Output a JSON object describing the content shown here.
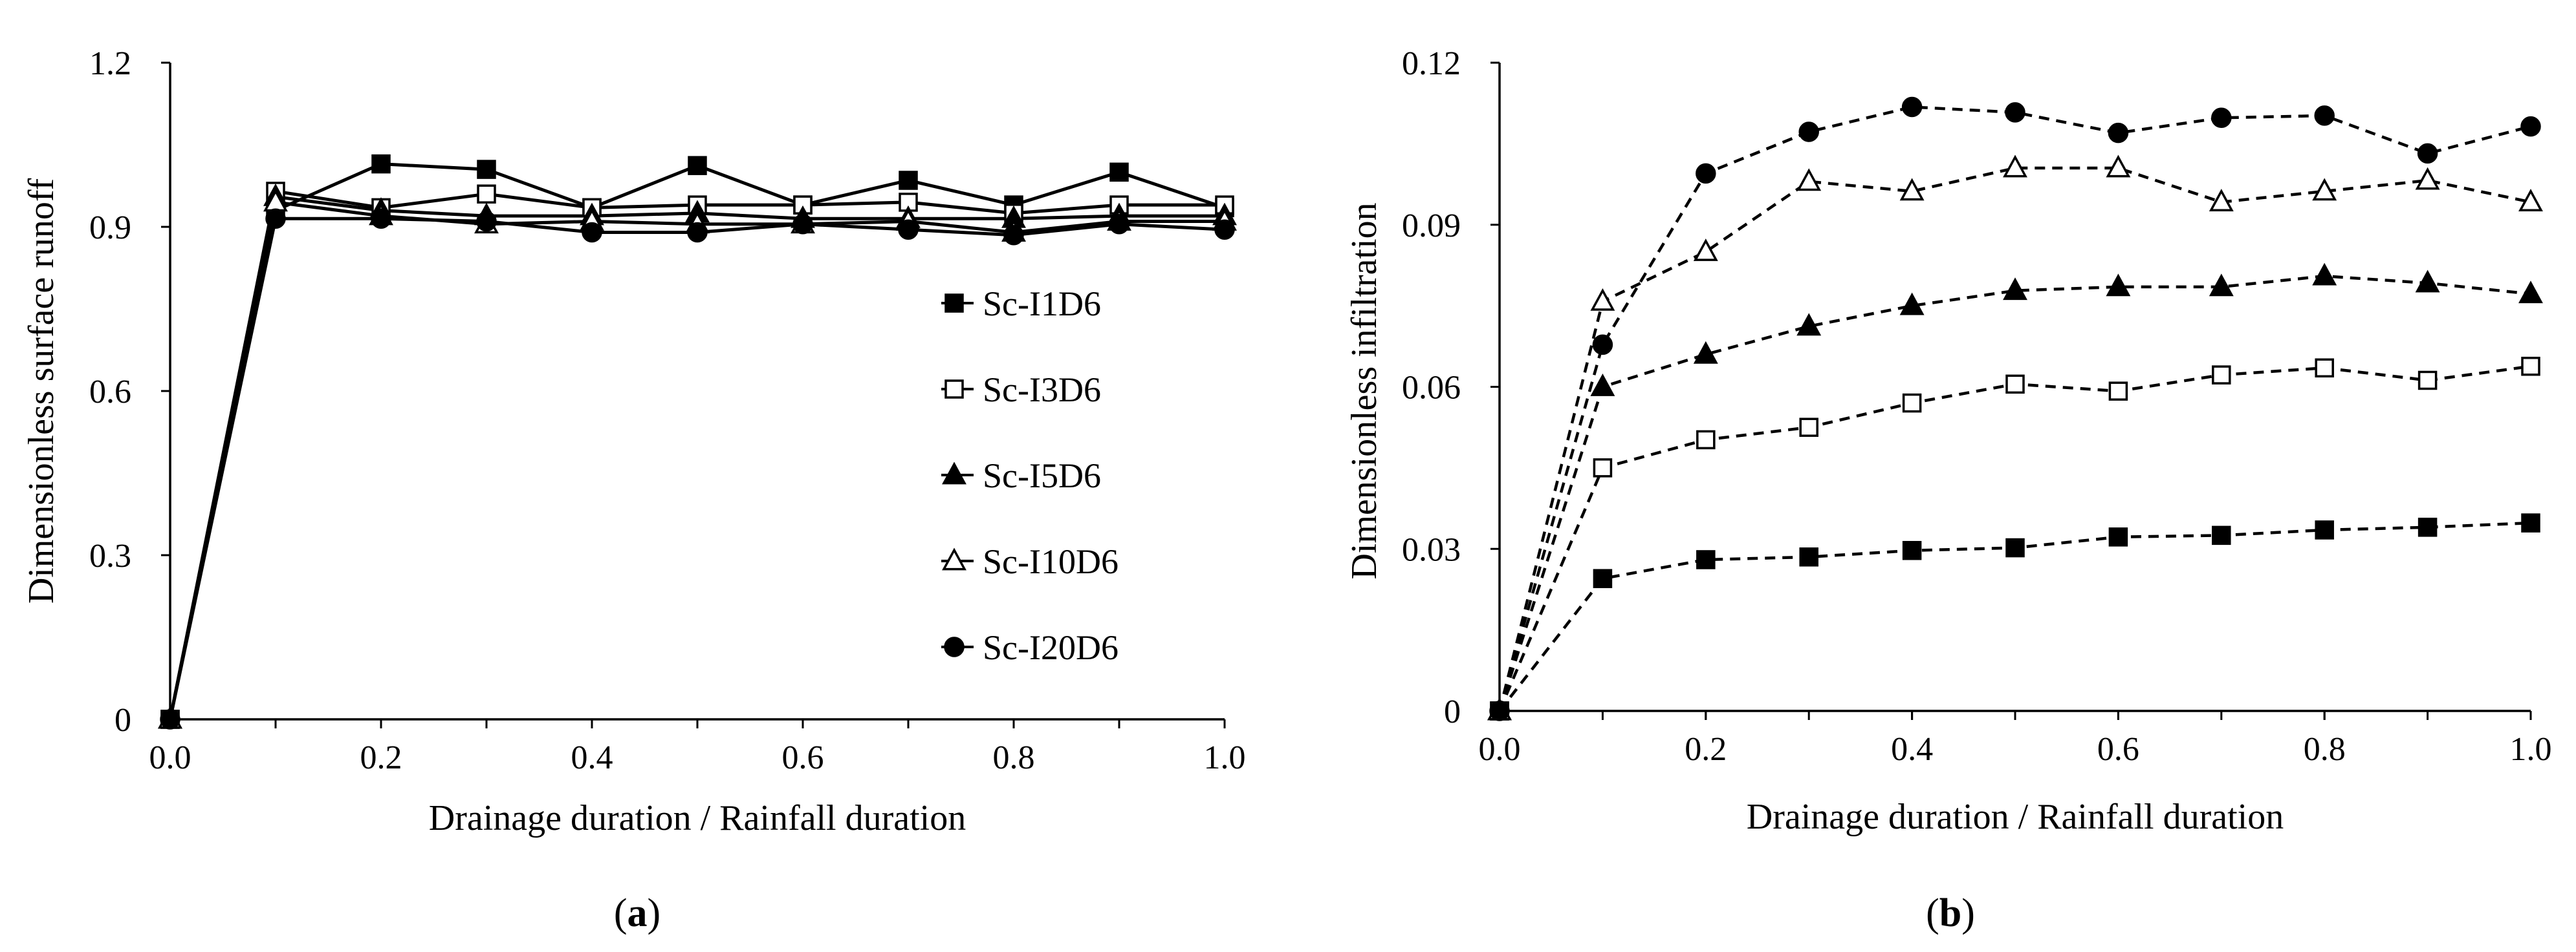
{
  "chart_data": [
    {
      "type": "line",
      "panel_label": "a",
      "xlabel": "Drainage duration / Rainfall duration",
      "ylabel": "Dimensionless surface runoff",
      "xlim": [
        0.0,
        1.0
      ],
      "ylim": [
        0,
        1.2
      ],
      "x_ticks": [
        "0.0",
        "0.2",
        "0.4",
        "0.6",
        "0.8",
        "1.0"
      ],
      "y_ticks": [
        "0",
        "0.3",
        "0.6",
        "0.9",
        "1.2"
      ],
      "x": [
        0.0,
        0.1,
        0.2,
        0.3,
        0.4,
        0.5,
        0.6,
        0.7,
        0.8,
        0.9,
        1.0
      ],
      "line_style": "solid",
      "legend_position": "right",
      "series": [
        {
          "name": "Sc-I1D6",
          "marker": "square-filled",
          "values": [
            0,
            0.93,
            1.015,
            1.005,
            0.935,
            1.012,
            0.94,
            0.985,
            0.94,
            1.0,
            0.935
          ]
        },
        {
          "name": "Sc-I3D6",
          "marker": "square-open",
          "values": [
            0,
            0.965,
            0.935,
            0.96,
            0.935,
            0.94,
            0.94,
            0.945,
            0.925,
            0.94,
            0.94
          ]
        },
        {
          "name": "Sc-I5D6",
          "marker": "triangle-filled",
          "values": [
            0,
            0.955,
            0.93,
            0.92,
            0.92,
            0.925,
            0.915,
            0.915,
            0.915,
            0.92,
            0.92
          ]
        },
        {
          "name": "Sc-I10D6",
          "marker": "triangle-open",
          "values": [
            0,
            0.945,
            0.92,
            0.905,
            0.91,
            0.905,
            0.905,
            0.91,
            0.89,
            0.91,
            0.91
          ]
        },
        {
          "name": "Sc-I20D6",
          "marker": "circle-filled",
          "values": [
            0,
            0.915,
            0.915,
            0.91,
            0.89,
            0.89,
            0.905,
            0.895,
            0.885,
            0.905,
            0.895
          ]
        }
      ]
    },
    {
      "type": "line",
      "panel_label": "b",
      "xlabel": "Drainage duration / Rainfall duration",
      "ylabel": "Dimensionless infiltration",
      "xlim": [
        0.0,
        1.0
      ],
      "ylim": [
        0,
        0.12
      ],
      "x_ticks": [
        "0.0",
        "0.2",
        "0.4",
        "0.6",
        "0.8",
        "1.0"
      ],
      "y_ticks": [
        "0",
        "0.03",
        "0.06",
        "0.09",
        "0.12"
      ],
      "x": [
        0.0,
        0.1,
        0.2,
        0.3,
        0.4,
        0.5,
        0.6,
        0.7,
        0.8,
        0.9,
        1.0
      ],
      "line_style": "dashed",
      "series": [
        {
          "name": "Sc-I1D6",
          "marker": "square-filled",
          "values": [
            0,
            0.0245,
            0.028,
            0.0285,
            0.0297,
            0.0302,
            0.0322,
            0.0325,
            0.0335,
            0.034,
            0.0348
          ]
        },
        {
          "name": "Sc-I3D6",
          "marker": "square-open",
          "values": [
            0,
            0.045,
            0.0502,
            0.0525,
            0.057,
            0.0605,
            0.0592,
            0.0622,
            0.0635,
            0.0612,
            0.0638
          ]
        },
        {
          "name": "Sc-I5D6",
          "marker": "triangle-filled",
          "values": [
            0,
            0.06,
            0.066,
            0.0712,
            0.075,
            0.0778,
            0.0785,
            0.0785,
            0.0805,
            0.0792,
            0.0772
          ]
        },
        {
          "name": "Sc-I10D6",
          "marker": "triangle-open",
          "values": [
            0,
            0.0758,
            0.085,
            0.098,
            0.0962,
            0.1005,
            0.1005,
            0.0942,
            0.0962,
            0.0982,
            0.0942
          ]
        },
        {
          "name": "Sc-I20D6",
          "marker": "circle-filled",
          "values": [
            0,
            0.0678,
            0.0995,
            0.1072,
            0.1118,
            0.1108,
            0.107,
            0.1098,
            0.1102,
            0.1032,
            0.1082
          ]
        }
      ]
    }
  ],
  "colors": {
    "line": "#000000",
    "background": "#ffffff"
  }
}
